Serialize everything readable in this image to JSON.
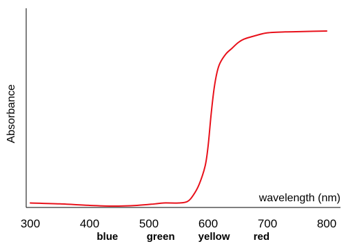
{
  "chart_data": {
    "type": "line",
    "title": "",
    "xlabel": "wavelength (nm)",
    "ylabel": "Absorbance",
    "xlim": [
      300,
      800
    ],
    "ylim": [
      0,
      1
    ],
    "x_ticks": [
      300,
      400,
      500,
      600,
      700,
      800
    ],
    "x_tick_labels": [
      "300",
      "400",
      "500",
      "600",
      "700",
      "800"
    ],
    "color_labels": [
      {
        "x": 430,
        "label": "blue"
      },
      {
        "x": 520,
        "label": "green"
      },
      {
        "x": 610,
        "label": "yellow"
      },
      {
        "x": 690,
        "label": "red"
      }
    ],
    "grid": false,
    "series": [
      {
        "color": "#e8101a",
        "x": [
          300,
          350,
          400,
          440,
          480,
          510,
          525,
          550,
          565,
          575,
          585,
          595,
          600,
          605,
          610,
          615,
          620,
          630,
          640,
          650,
          660,
          680,
          700,
          730,
          760,
          800
        ],
        "y": [
          0.017,
          0.012,
          0.004,
          0.0,
          0.004,
          0.012,
          0.017,
          0.017,
          0.025,
          0.06,
          0.12,
          0.22,
          0.33,
          0.5,
          0.64,
          0.73,
          0.78,
          0.83,
          0.86,
          0.89,
          0.91,
          0.93,
          0.945,
          0.95,
          0.952,
          0.955
        ]
      }
    ]
  }
}
